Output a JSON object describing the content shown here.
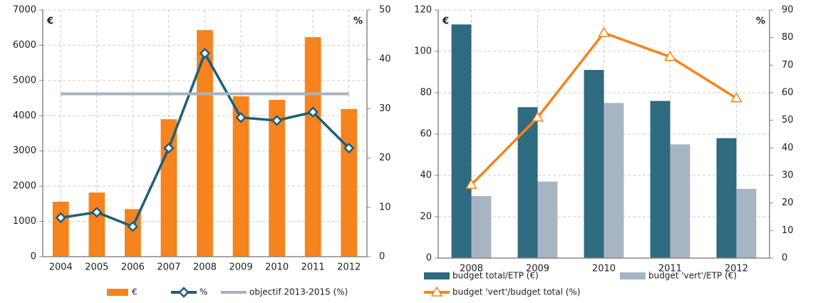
{
  "chart_data": [
    {
      "type": "combo",
      "y_unit_label": "€",
      "y2_unit_label": "%",
      "categories": [
        "2004",
        "2005",
        "2006",
        "2007",
        "2008",
        "2009",
        "2010",
        "2011",
        "2012"
      ],
      "ylim": [
        0,
        7000
      ],
      "yticks": [
        0,
        1000,
        2000,
        3000,
        4000,
        5000,
        6000,
        7000
      ],
      "y2lim": [
        0,
        50
      ],
      "y2ticks": [
        0,
        10,
        20,
        30,
        40,
        50
      ],
      "grid": true,
      "series": [
        {
          "name": "€",
          "type": "bar",
          "color": "#f5841f",
          "values": [
            1560,
            1820,
            1350,
            3900,
            6430,
            4550,
            4450,
            6230,
            4190
          ]
        },
        {
          "name": "%",
          "type": "line",
          "marker": "diamond",
          "axis": "y2",
          "color": "#1f5e78",
          "values": [
            7.9,
            9,
            6.1,
            22,
            41.2,
            28.2,
            27.6,
            29.3,
            22
          ]
        },
        {
          "name": "objectif 2013-2015 (%)",
          "type": "line",
          "axis": "y2",
          "color": "#a6b3c1",
          "values": [
            33,
            33,
            33,
            33,
            33,
            33,
            33,
            33,
            33
          ]
        }
      ]
    },
    {
      "type": "combo",
      "y_unit_label": "€",
      "y2_unit_label": "%",
      "categories": [
        "2008",
        "2009",
        "2010",
        "2011",
        "2012"
      ],
      "ylim": [
        0,
        120
      ],
      "yticks": [
        0,
        20,
        40,
        60,
        80,
        100,
        120
      ],
      "y2lim": [
        0,
        90
      ],
      "y2ticks": [
        0,
        10,
        20,
        30,
        40,
        50,
        60,
        70,
        80,
        90
      ],
      "grid": true,
      "series": [
        {
          "name": "budget total/ETP (€)",
          "type": "bar",
          "color": "#2e6a80",
          "values": [
            113,
            73,
            91,
            76,
            58
          ]
        },
        {
          "name": "budget 'vert'/ETP (€)",
          "type": "bar",
          "color": "#a7b4c2",
          "values": [
            30,
            37,
            75,
            55,
            33.5
          ]
        },
        {
          "name": "budget 'vert'/budget total (%)",
          "type": "line",
          "marker": "triangle",
          "axis": "y2",
          "color": "#f5841f",
          "values": [
            26.6,
            51,
            81.7,
            73,
            58
          ]
        }
      ]
    }
  ]
}
